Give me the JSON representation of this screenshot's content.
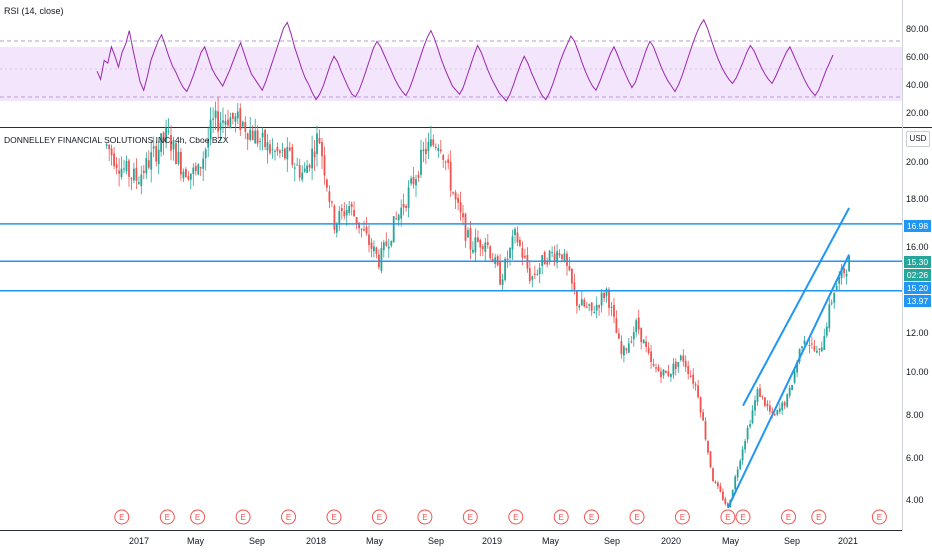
{
  "rsi_panel": {
    "title": "RSI (14, close)",
    "upper_band": 70,
    "lower_band": 30,
    "y_ticks": [
      "80.00",
      "60.00",
      "40.00",
      "20.00"
    ],
    "line_color": "#9c27b0",
    "band_color": "#f3e5fc"
  },
  "price_panel": {
    "title": "DONNELLEY FINANCIAL SOLUTIONS INC, 4h, Cboe BZX",
    "currency": "USD",
    "y_ticks": [
      "20.00",
      "18.00",
      "16.00",
      "14.00",
      "12.00",
      "10.00",
      "8.00",
      "6.00",
      "4.00"
    ],
    "horizontal_lines": [
      16.98,
      15.3,
      13.97
    ],
    "line_color": "#2196f3",
    "up_color": "#26a69a",
    "down_color": "#ef5350"
  },
  "price_labels": [
    {
      "text": "16.98",
      "color": "#2196f3"
    },
    {
      "text": "15.30",
      "color": "#26a69a"
    },
    {
      "text": "02:26",
      "color": "#26a69a"
    },
    {
      "text": "15.20",
      "color": "#2196f3"
    },
    {
      "text": "13.97",
      "color": "#2196f3"
    }
  ],
  "x_axis": {
    "ticks": [
      "2017",
      "May",
      "Sep",
      "2018",
      "May",
      "Sep",
      "2019",
      "May",
      "Sep",
      "2020",
      "May",
      "Sep",
      "2021"
    ]
  },
  "earnings_marker": "E",
  "chart_data": {
    "type": "candlestick",
    "title": "DONNELLEY FINANCIAL SOLUTIONS INC, 4h, Cboe BZX",
    "currency": "USD",
    "ylim": [
      3.2,
      21.3
    ],
    "x_range": [
      "2016-10",
      "2021-02"
    ],
    "price_path": [
      {
        "x": "2016-11",
        "y": 20.5
      },
      {
        "x": "2016-12",
        "y": 19.5
      },
      {
        "x": "2017-01",
        "y": 19.0
      },
      {
        "x": "2017-02",
        "y": 20.0
      },
      {
        "x": "2017-03",
        "y": 21.0
      },
      {
        "x": "2017-04",
        "y": 19.5
      },
      {
        "x": "2017-05",
        "y": 19.2
      },
      {
        "x": "2017-06",
        "y": 21.5
      },
      {
        "x": "2017-07",
        "y": 21.8
      },
      {
        "x": "2017-08",
        "y": 21.5
      },
      {
        "x": "2017-09",
        "y": 20.8
      },
      {
        "x": "2017-10",
        "y": 20.2
      },
      {
        "x": "2017-11",
        "y": 20.0
      },
      {
        "x": "2017-12",
        "y": 19.2
      },
      {
        "x": "2018-01",
        "y": 21.0
      },
      {
        "x": "2018-02",
        "y": 17.0
      },
      {
        "x": "2018-03",
        "y": 17.8
      },
      {
        "x": "2018-04",
        "y": 16.5
      },
      {
        "x": "2018-05",
        "y": 15.3
      },
      {
        "x": "2018-06",
        "y": 17.0
      },
      {
        "x": "2018-07",
        "y": 18.5
      },
      {
        "x": "2018-08",
        "y": 20.3
      },
      {
        "x": "2018-09",
        "y": 20.8
      },
      {
        "x": "2018-10",
        "y": 18.0
      },
      {
        "x": "2018-11",
        "y": 16.0
      },
      {
        "x": "2018-12",
        "y": 16.3
      },
      {
        "x": "2019-01",
        "y": 14.5
      },
      {
        "x": "2019-02",
        "y": 16.5
      },
      {
        "x": "2019-03",
        "y": 14.5
      },
      {
        "x": "2019-04",
        "y": 15.5
      },
      {
        "x": "2019-05",
        "y": 15.8
      },
      {
        "x": "2019-06",
        "y": 13.5
      },
      {
        "x": "2019-07",
        "y": 13.0
      },
      {
        "x": "2019-08",
        "y": 14.0
      },
      {
        "x": "2019-09",
        "y": 11.0
      },
      {
        "x": "2019-10",
        "y": 12.5
      },
      {
        "x": "2019-11",
        "y": 10.5
      },
      {
        "x": "2019-12",
        "y": 10.2
      },
      {
        "x": "2020-01",
        "y": 11.0
      },
      {
        "x": "2020-02",
        "y": 9.5
      },
      {
        "x": "2020-03",
        "y": 5.5
      },
      {
        "x": "2020-04",
        "y": 4.2
      },
      {
        "x": "2020-05",
        "y": 7.0
      },
      {
        "x": "2020-06",
        "y": 9.5
      },
      {
        "x": "2020-07",
        "y": 8.2
      },
      {
        "x": "2020-08",
        "y": 9.2
      },
      {
        "x": "2020-09",
        "y": 12.0
      },
      {
        "x": "2020-10",
        "y": 11.0
      },
      {
        "x": "2020-11",
        "y": 14.0
      },
      {
        "x": "2020-12",
        "y": 15.3
      }
    ],
    "horizontal_levels": [
      16.98,
      15.3,
      13.97
    ],
    "channel_lines": [
      {
        "from": {
          "x": "2020-04",
          "y": 4.2
        },
        "to": {
          "x": "2020-12",
          "y": 15.6
        }
      },
      {
        "from": {
          "x": "2020-05",
          "y": 8.8
        },
        "to": {
          "x": "2020-12",
          "y": 17.7
        }
      }
    ],
    "last_price": 15.3,
    "countdown": "02:26",
    "rsi": {
      "name": "RSI (14, close)",
      "ylim": [
        13,
        95
      ],
      "bands": [
        30,
        70
      ],
      "values": [
        52,
        46,
        60,
        58,
        70,
        63,
        55,
        66,
        72,
        82,
        68,
        56,
        44,
        38,
        48,
        60,
        67,
        74,
        79,
        71,
        63,
        56,
        51,
        45,
        40,
        37,
        43,
        50,
        58,
        66,
        70,
        62,
        54,
        49,
        45,
        41,
        47,
        53,
        60,
        67,
        73,
        65,
        57,
        50,
        46,
        42,
        38,
        44,
        52,
        60,
        68,
        76,
        84,
        88,
        80,
        70,
        62,
        54,
        47,
        42,
        36,
        31,
        35,
        41,
        49,
        57,
        63,
        59,
        52,
        46,
        40,
        35,
        33,
        38,
        45,
        53,
        61,
        69,
        74,
        70,
        64,
        58,
        52,
        46,
        41,
        37,
        34,
        39,
        46,
        54,
        62,
        70,
        77,
        82,
        76,
        68,
        60,
        53,
        47,
        41,
        38,
        35,
        40,
        48,
        56,
        64,
        71,
        66,
        59,
        52,
        46,
        41,
        36,
        33,
        30,
        35,
        42,
        50,
        57,
        63,
        58,
        51,
        45,
        39,
        34,
        31,
        36,
        43,
        51,
        59,
        66,
        72,
        78,
        74,
        67,
        59,
        52,
        46,
        41,
        38,
        44,
        51,
        58,
        65,
        70,
        64,
        57,
        51,
        45,
        40,
        44,
        52,
        60,
        68,
        74,
        70,
        63,
        56,
        50,
        45,
        41,
        37,
        42,
        49,
        57,
        65,
        73,
        80,
        86,
        90,
        84,
        76,
        68,
        61,
        55,
        50,
        46,
        43,
        47,
        53,
        59,
        66,
        71,
        67,
        61,
        55,
        50,
        46,
        43,
        48,
        54,
        60,
        66,
        70,
        64,
        58,
        52,
        46,
        41,
        37,
        34,
        38,
        45,
        52,
        58,
        64
      ]
    },
    "earnings_dates": [
      "2016-12",
      "2017-03",
      "2017-05",
      "2017-08",
      "2017-11",
      "2018-02",
      "2018-05",
      "2018-08",
      "2018-11",
      "2019-02",
      "2019-05",
      "2019-07",
      "2019-10",
      "2020-01",
      "2020-04",
      "2020-05",
      "2020-08",
      "2020-10",
      "2021-02"
    ]
  }
}
